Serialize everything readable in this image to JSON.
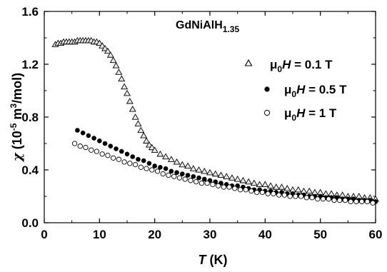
{
  "chart_data": {
    "type": "scatter",
    "title_main": "GdNiAlH",
    "title_sub": "1.35",
    "xlabel_var": "T",
    "xlabel_unit": " (K)",
    "ylabel_var": "χ",
    "ylabel_unit_pre": " (10",
    "ylabel_unit_exp": "-5",
    "ylabel_unit_mid": " m",
    "ylabel_unit_exp2": "3",
    "ylabel_unit_post": "/mol)",
    "xlim": [
      0,
      60
    ],
    "ylim": [
      0,
      1.6
    ],
    "xticks": [
      "0",
      "10",
      "20",
      "30",
      "40",
      "50",
      "60"
    ],
    "yticks": [
      "0.0",
      "0.4",
      "0.8",
      "1.2",
      "1.6"
    ],
    "legend_position": "top-right",
    "series": [
      {
        "name_pre": "μ",
        "name_sub": "0",
        "name_var": "H",
        "name_post": " = 0.1 T",
        "marker": "open-triangle",
        "x": [
          2,
          2.5,
          3,
          3.5,
          4,
          4.5,
          5,
          5.5,
          6,
          6.5,
          7,
          7.5,
          8,
          8.5,
          9,
          9.5,
          10,
          10.5,
          11,
          11.5,
          12,
          12.5,
          13,
          13.5,
          14,
          14.5,
          15,
          15.5,
          16,
          16.5,
          17,
          17.5,
          18,
          18.5,
          19,
          19.5,
          20,
          21,
          22,
          23,
          24,
          25,
          26,
          27,
          28,
          29,
          30,
          31,
          32,
          33,
          34,
          35,
          36,
          37,
          38,
          39,
          40,
          41,
          42,
          43,
          44,
          45,
          46,
          47,
          48,
          49,
          50,
          51,
          52,
          53,
          54,
          55,
          56,
          57,
          58,
          59,
          60
        ],
        "y": [
          1.35,
          1.36,
          1.36,
          1.37,
          1.37,
          1.37,
          1.37,
          1.37,
          1.38,
          1.38,
          1.38,
          1.38,
          1.38,
          1.38,
          1.37,
          1.37,
          1.36,
          1.34,
          1.32,
          1.3,
          1.27,
          1.23,
          1.19,
          1.14,
          1.09,
          1.03,
          0.98,
          0.92,
          0.86,
          0.8,
          0.75,
          0.7,
          0.66,
          0.62,
          0.59,
          0.57,
          0.55,
          0.52,
          0.5,
          0.48,
          0.46,
          0.44,
          0.43,
          0.41,
          0.4,
          0.39,
          0.38,
          0.37,
          0.36,
          0.35,
          0.34,
          0.33,
          0.32,
          0.31,
          0.3,
          0.29,
          0.29,
          0.28,
          0.27,
          0.27,
          0.26,
          0.25,
          0.25,
          0.24,
          0.24,
          0.23,
          0.23,
          0.22,
          0.22,
          0.21,
          0.21,
          0.2,
          0.2,
          0.2,
          0.19,
          0.19,
          0.18
        ]
      },
      {
        "name_pre": "μ",
        "name_sub": "0",
        "name_var": "H",
        "name_post": " = 0.5 T",
        "marker": "filled-circle",
        "x": [
          6,
          7,
          8,
          9,
          10,
          11,
          12,
          13,
          14,
          15,
          16,
          17,
          18,
          19,
          20,
          21,
          22,
          23,
          24,
          25,
          26,
          27,
          28,
          29,
          30,
          31,
          32,
          33,
          34,
          35,
          36,
          37,
          38,
          39,
          40,
          41,
          42,
          43,
          44,
          45,
          46,
          47,
          48,
          49,
          50,
          51,
          52,
          53,
          54,
          55,
          56,
          57,
          58,
          59,
          60
        ],
        "y": [
          0.7,
          0.68,
          0.66,
          0.64,
          0.62,
          0.6,
          0.58,
          0.56,
          0.54,
          0.52,
          0.5,
          0.48,
          0.47,
          0.45,
          0.43,
          0.42,
          0.41,
          0.39,
          0.38,
          0.37,
          0.36,
          0.35,
          0.34,
          0.33,
          0.32,
          0.31,
          0.3,
          0.29,
          0.28,
          0.28,
          0.27,
          0.26,
          0.25,
          0.25,
          0.24,
          0.24,
          0.23,
          0.23,
          0.22,
          0.22,
          0.21,
          0.21,
          0.2,
          0.2,
          0.2,
          0.19,
          0.19,
          0.19,
          0.18,
          0.18,
          0.18,
          0.17,
          0.17,
          0.17,
          0.16
        ]
      },
      {
        "name_pre": "μ",
        "name_sub": "0",
        "name_var": "H",
        "name_post": " = 1 T",
        "marker": "open-circle",
        "x": [
          5.5,
          6.5,
          7.5,
          8.5,
          9.5,
          10.5,
          11.5,
          12.5,
          13.5,
          14.5,
          15.5,
          16.5,
          17.5,
          18.5,
          19.5,
          20.5,
          21.5,
          22.5,
          23.5,
          24.5,
          25.5,
          26.5,
          27.5,
          28.5,
          29.5,
          30.5,
          31.5,
          32.5,
          33.5,
          34.5,
          35.5,
          36.5,
          37.5,
          38.5,
          39.5,
          40.5,
          41.5,
          42.5,
          43.5,
          44.5,
          45.5,
          46.5,
          47.5,
          48.5,
          49.5,
          50.5,
          51.5,
          52.5,
          53.5,
          54.5,
          55.5,
          56.5,
          57.5,
          58.5,
          59.5
        ],
        "y": [
          0.6,
          0.58,
          0.57,
          0.55,
          0.54,
          0.52,
          0.51,
          0.49,
          0.48,
          0.46,
          0.45,
          0.44,
          0.42,
          0.41,
          0.4,
          0.39,
          0.37,
          0.36,
          0.35,
          0.34,
          0.33,
          0.32,
          0.31,
          0.3,
          0.3,
          0.29,
          0.28,
          0.27,
          0.27,
          0.26,
          0.25,
          0.25,
          0.24,
          0.23,
          0.23,
          0.22,
          0.22,
          0.21,
          0.21,
          0.2,
          0.2,
          0.2,
          0.19,
          0.19,
          0.18,
          0.18,
          0.18,
          0.17,
          0.17,
          0.17,
          0.16,
          0.16,
          0.16,
          0.16,
          0.15
        ]
      }
    ]
  }
}
